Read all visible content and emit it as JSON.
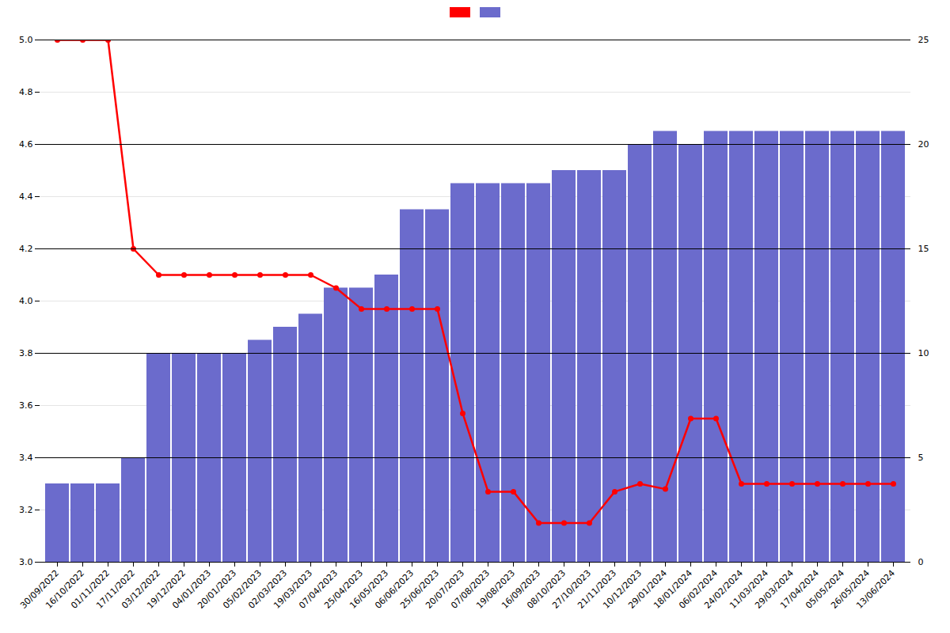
{
  "chart_data": {
    "type": "bar",
    "categories": [
      "30/09/2022",
      "16/10/2022",
      "01/11/2022",
      "17/11/2022",
      "03/12/2022",
      "19/12/2022",
      "04/01/2023",
      "20/01/2023",
      "05/02/2023",
      "02/03/2023",
      "19/03/2023",
      "07/04/2023",
      "25/04/2023",
      "16/05/2023",
      "06/06/2023",
      "25/06/2023",
      "20/07/2023",
      "07/08/2023",
      "19/08/2023",
      "16/09/2023",
      "08/10/2023",
      "27/10/2023",
      "21/11/2023",
      "10/12/2023",
      "29/01/2024",
      "18/01/2024",
      "06/02/2024",
      "24/02/2024",
      "11/03/2024",
      "29/03/2024",
      "17/04/2024",
      "05/05/2024",
      "26/05/2024",
      "13/06/2024"
    ],
    "series": [
      {
        "type": "bar",
        "color": "#6b6bcc",
        "values": [
          3.3,
          3.3,
          3.3,
          3.4,
          3.8,
          3.8,
          3.8,
          3.8,
          3.85,
          3.9,
          3.95,
          4.05,
          4.05,
          4.1,
          4.35,
          4.35,
          4.45,
          4.45,
          4.45,
          4.45,
          4.5,
          4.5,
          4.5,
          4.6,
          4.65,
          4.6,
          4.65,
          4.65,
          4.65,
          4.65,
          4.65,
          4.65,
          4.65,
          4.65
        ]
      },
      {
        "type": "line",
        "color": "#ff0000",
        "marker": "circle",
        "values": [
          5.0,
          5.0,
          5.0,
          4.2,
          4.1,
          4.1,
          4.1,
          4.1,
          4.1,
          4.1,
          4.1,
          4.05,
          3.97,
          3.97,
          3.97,
          3.97,
          3.57,
          3.27,
          3.27,
          3.15,
          3.15,
          3.15,
          3.27,
          3.3,
          3.28,
          3.55,
          3.55,
          3.3,
          3.3,
          3.3,
          3.3,
          3.3,
          3.3,
          3.3
        ]
      }
    ],
    "ylim": [
      3.0,
      5.0
    ],
    "yticks": [
      {
        "value": 3.0,
        "label": "3.0"
      },
      3.2,
      3.4,
      3.6,
      3.8,
      {
        "value": 4.0,
        "label": "4.0"
      },
      4.2,
      4.4,
      4.6,
      4.8,
      {
        "value": 5.0,
        "label": "5.0"
      }
    ],
    "y2lim": [
      0,
      25
    ],
    "y2ticks": [
      0,
      5,
      10,
      15,
      20,
      25
    ],
    "grid": true,
    "legend": "top"
  }
}
